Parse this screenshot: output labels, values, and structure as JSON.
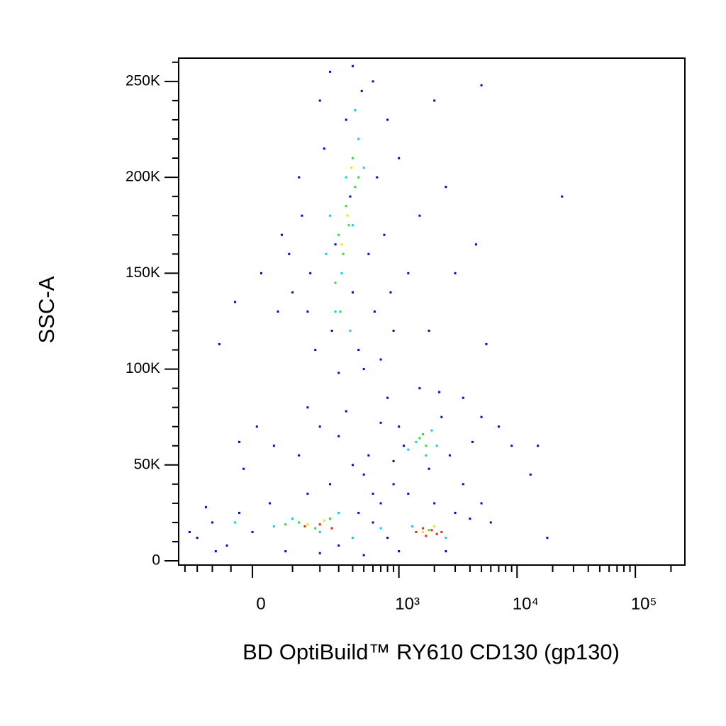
{
  "chart_data": {
    "type": "scatter",
    "xlabel": "BD OptiBuild™ RY610 CD130 (gp130)",
    "ylabel": "SSC-A",
    "xscale": "biexponential",
    "xlim": [
      -230,
      262144
    ],
    "ylim": [
      -2200,
      262144
    ],
    "xticks": [
      0,
      {
        "value": 1000,
        "label": "10³"
      },
      {
        "value": 10000,
        "label": "10⁴"
      },
      {
        "value": 100000,
        "label": "10⁵"
      }
    ],
    "xminorticks": [
      -200,
      -150,
      -100,
      -50,
      100,
      200,
      300,
      400,
      500,
      600,
      700,
      800,
      900,
      2000,
      3000,
      4000,
      5000,
      6000,
      7000,
      8000,
      9000,
      20000,
      30000,
      40000,
      50000,
      60000,
      70000,
      80000,
      90000,
      200000
    ],
    "yticks": [
      0,
      {
        "value": 50000,
        "label": "50K"
      },
      {
        "value": 100000,
        "label": "100K"
      },
      {
        "value": 150000,
        "label": "150K"
      },
      {
        "value": 200000,
        "label": "200K"
      },
      {
        "value": 250000,
        "label": "250K"
      }
    ],
    "yminorticks": [
      10000,
      20000,
      30000,
      40000,
      60000,
      70000,
      80000,
      90000,
      110000,
      120000,
      130000,
      140000,
      160000,
      170000,
      180000,
      190000,
      210000,
      220000,
      230000,
      240000,
      260000
    ],
    "series": [
      {
        "color": "#0000ff",
        "x": [
          150,
          90,
          120,
          200,
          250,
          400,
          600,
          800,
          1000,
          1500,
          2000,
          2500,
          1200,
          900,
          700,
          500,
          300,
          180,
          100,
          70,
          60,
          130,
          220,
          350,
          480,
          650,
          750,
          850,
          450,
          260,
          160,
          400,
          550,
          620,
          380,
          280,
          5000,
          24000,
          4500,
          5500,
          3000,
          1800,
          -80,
          -40,
          20,
          -150,
          -100,
          -60,
          -30,
          0,
          40,
          80,
          150,
          250,
          300,
          450,
          600,
          700,
          800,
          -20,
          50,
          120,
          200,
          300,
          400,
          500,
          10,
          -30,
          150,
          350,
          550,
          700,
          600,
          900,
          1200,
          2000,
          3000,
          4000,
          5000,
          6000,
          3500,
          -120,
          -180,
          -90,
          200,
          500,
          1000,
          2500,
          18000,
          13000,
          15000,
          9000,
          7000,
          5000,
          3500,
          2200,
          1500,
          800,
          1000,
          1800,
          2700,
          4200,
          2300,
          1100,
          900
        ],
        "values": [
          130000,
          160000,
          200000,
          240000,
          255000,
          258000,
          250000,
          230000,
          210000,
          180000,
          240000,
          195000,
          150000,
          120000,
          105000,
          100000,
          98000,
          110000,
          140000,
          170000,
          130000,
          180000,
          215000,
          230000,
          245000,
          200000,
          170000,
          140000,
          110000,
          120000,
          150000,
          140000,
          160000,
          130000,
          190000,
          165000,
          248000,
          190000,
          165000,
          113000,
          150000,
          120000,
          113000,
          135000,
          150000,
          12000,
          20000,
          8000,
          25000,
          15000,
          30000,
          5000,
          35000,
          40000,
          8000,
          25000,
          20000,
          30000,
          12000,
          48000,
          60000,
          55000,
          70000,
          65000,
          50000,
          45000,
          70000,
          62000,
          80000,
          78000,
          55000,
          72000,
          35000,
          40000,
          35000,
          30000,
          25000,
          22000,
          30000,
          20000,
          40000,
          28000,
          15000,
          5000,
          4000,
          3000,
          5000,
          5000,
          12000,
          45000,
          60000,
          60000,
          70000,
          75000,
          85000,
          88000,
          90000,
          85000,
          70000,
          48000,
          55000,
          62000,
          75000,
          60000,
          52000
        ]
      },
      {
        "color": "#00d0ff",
        "x": [
          250,
          350,
          450,
          320,
          280,
          400,
          500,
          230,
          380,
          420,
          1400,
          1700,
          1900,
          1200,
          2100,
          100,
          200,
          300,
          50,
          400,
          1300,
          2500,
          700,
          -40
        ],
        "values": [
          180000,
          200000,
          220000,
          150000,
          130000,
          175000,
          205000,
          160000,
          120000,
          235000,
          62000,
          55000,
          68000,
          58000,
          60000,
          22000,
          15000,
          25000,
          18000,
          12000,
          18000,
          12000,
          17000,
          20000
        ]
      },
      {
        "color": "#30e030",
        "x": [
          300,
          350,
          400,
          280,
          420,
          330,
          370,
          450,
          310,
          1500,
          1700,
          1600,
          120,
          180,
          250,
          80,
          1800
        ],
        "values": [
          170000,
          185000,
          210000,
          145000,
          195000,
          160000,
          175000,
          200000,
          130000,
          64000,
          60000,
          66000,
          20000,
          17000,
          22000,
          19000,
          16000
        ]
      },
      {
        "color": "#e8e800",
        "x": [
          360,
          390,
          320,
          150,
          220,
          1600,
          2000
        ],
        "values": [
          180000,
          205000,
          165000,
          19000,
          21000,
          15000,
          18000
        ]
      },
      {
        "color": "#ff2000",
        "x": [
          140,
          200,
          260,
          1400,
          1700,
          1900,
          2100,
          1600,
          2300
        ],
        "values": [
          18000,
          19000,
          17000,
          15000,
          13000,
          16000,
          14000,
          17000,
          15000
        ]
      }
    ]
  }
}
